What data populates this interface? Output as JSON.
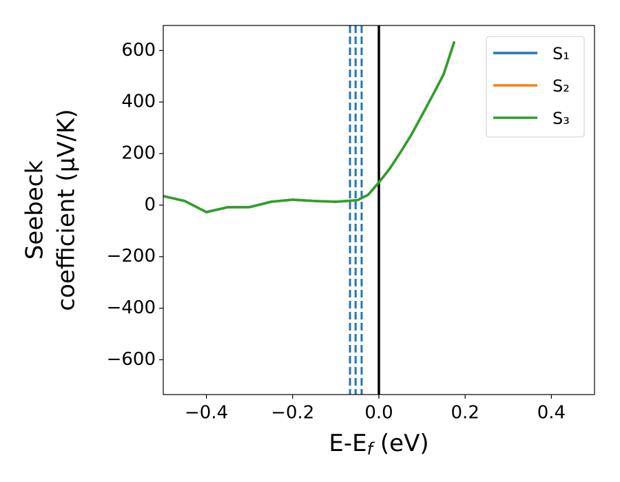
{
  "chart_data": {
    "type": "line",
    "xlabel": [
      "E-E",
      "f",
      " (eV)"
    ],
    "ylabel": [
      "Seebeck",
      "coefficient  (μV/K)"
    ],
    "x": [
      -0.5,
      -0.45,
      -0.4,
      -0.35,
      -0.3,
      -0.25,
      -0.2,
      -0.15,
      -0.1,
      -0.05,
      -0.025,
      0,
      0.025,
      0.05,
      0.075,
      0.1,
      0.125,
      0.15,
      0.175
    ],
    "series": [
      {
        "name": "S₁",
        "color": "#1f77b4",
        "values": [
          35,
          16,
          -27,
          -8,
          -8,
          13,
          21,
          16,
          13,
          19,
          40,
          88,
          141,
          205,
          272,
          349,
          427,
          507,
          635
        ]
      },
      {
        "name": "S₂",
        "color": "#ff7f0e",
        "values": [
          35,
          16,
          -27,
          -8,
          -8,
          13,
          21,
          16,
          13,
          19,
          40,
          88,
          141,
          205,
          272,
          349,
          427,
          507,
          635
        ]
      },
      {
        "name": "S₃",
        "color": "#2ca02c",
        "values": [
          35,
          16,
          -27,
          -8,
          -8,
          13,
          21,
          16,
          13,
          19,
          40,
          88,
          141,
          205,
          272,
          349,
          427,
          507,
          635
        ]
      }
    ],
    "vlines": [
      {
        "x": -0.067,
        "color": "#1f77b4",
        "dashed": true
      },
      {
        "x": -0.054,
        "color": "#1f77b4",
        "dashed": true
      },
      {
        "x": -0.04,
        "color": "#1f77b4",
        "dashed": true
      },
      {
        "x": 0,
        "color": "#000000",
        "dashed": false
      }
    ],
    "xlim": [
      -0.5,
      0.5
    ],
    "ylim": [
      -735,
      697
    ],
    "xticks": [
      {
        "value": -0.4,
        "label": "−0.4"
      },
      {
        "value": -0.2,
        "label": "−0.2"
      },
      {
        "value": 0,
        "label": "0.0"
      },
      {
        "value": 0.2,
        "label": "0.2"
      },
      {
        "value": 0.4,
        "label": "0.4"
      }
    ],
    "yticks": [
      {
        "value": -600,
        "label": "−600"
      },
      {
        "value": -400,
        "label": "−400"
      },
      {
        "value": -200,
        "label": "−200"
      },
      0,
      200,
      400,
      600
    ],
    "legend": "upper right"
  }
}
